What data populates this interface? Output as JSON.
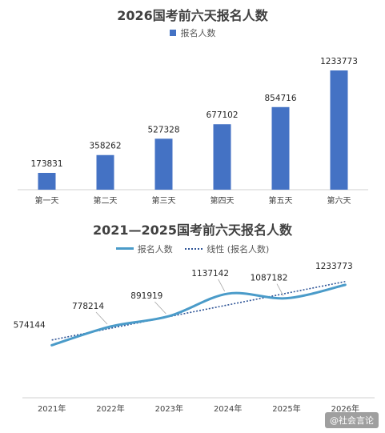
{
  "chart_data": [
    {
      "type": "bar",
      "title": "2026国考前六天报名人数",
      "categories": [
        "第一天",
        "第二天",
        "第三天",
        "第四天",
        "第五天",
        "第六天"
      ],
      "series": [
        {
          "name": "报名人数",
          "values": [
            173831,
            358262,
            527328,
            677102,
            854716,
            1233773
          ]
        }
      ],
      "color": "#4472C4",
      "ylim": [
        0,
        1400000
      ],
      "grid": false,
      "legend": "top"
    },
    {
      "type": "line",
      "title": "2021—2025国考前六天报名人数",
      "categories": [
        "2021年",
        "2022年",
        "2023年",
        "2024年",
        "2025年",
        "2026年"
      ],
      "series": [
        {
          "name": "报名人数",
          "values": [
            574144,
            778214,
            891919,
            1137142,
            1087182,
            1233773
          ],
          "color": "#4A9BC9",
          "smooth": true
        },
        {
          "name": "线性 (报名人数)",
          "trendline": true,
          "color": "#2F5597",
          "style": "dotted"
        }
      ],
      "ylim": [
        0,
        1400000
      ],
      "grid": false,
      "legend": "top"
    }
  ],
  "watermark": "@社会言论"
}
